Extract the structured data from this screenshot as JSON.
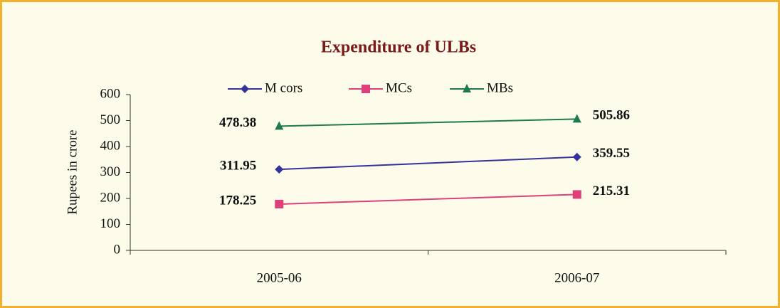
{
  "chart_data": {
    "type": "line",
    "title": "Expenditure of ULBs",
    "y_label": "Rupees in crore",
    "categories": [
      "2005-06",
      "2006-07"
    ],
    "series": [
      {
        "name": "M cors",
        "color": "#333399",
        "marker": "diamond",
        "values": [
          311.95,
          359.55
        ]
      },
      {
        "name": "MCs",
        "color": "#e0407a",
        "marker": "square",
        "values": [
          178.25,
          215.31
        ]
      },
      {
        "name": "MBs",
        "color": "#1f7a50",
        "marker": "triangle",
        "values": [
          478.38,
          505.86
        ]
      }
    ],
    "ylim": [
      0,
      600
    ],
    "yticks": [
      0,
      100,
      200,
      300,
      400,
      500,
      600
    ],
    "legend": "top"
  }
}
